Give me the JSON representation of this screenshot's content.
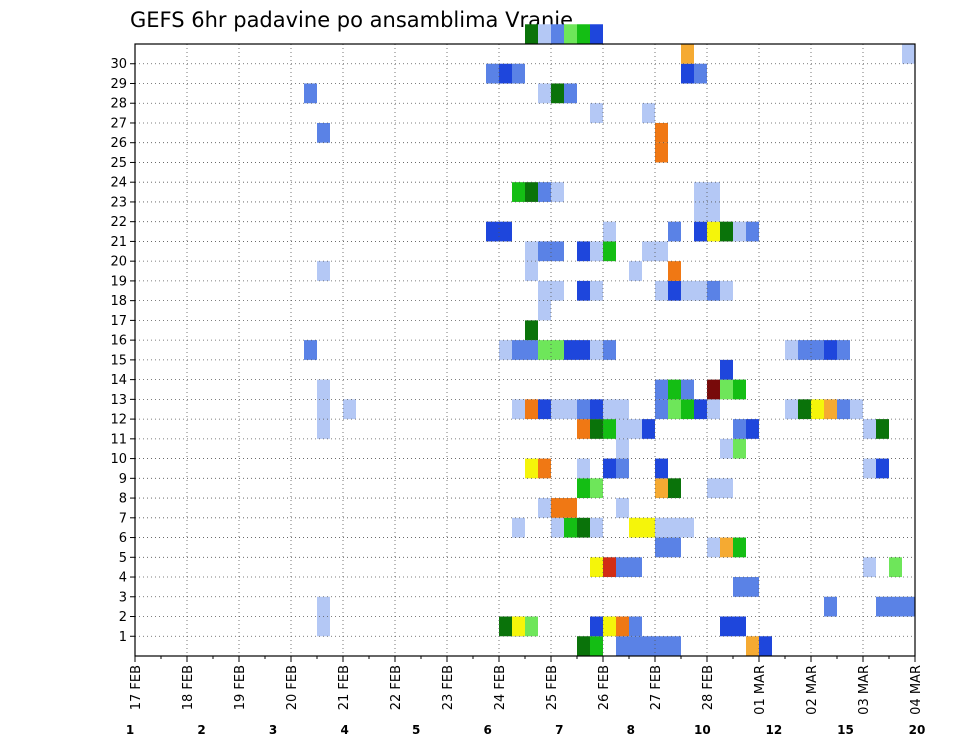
{
  "chart_data": {
    "type": "heatmap",
    "title": "GEFS 6hr padavine po ansamblima Vranje",
    "xlabel": "",
    "ylabel": "",
    "x_labels": [
      "17 FEB",
      "18 FEB",
      "19 FEB",
      "20 FEB",
      "21 FEB",
      "22 FEB",
      "23 FEB",
      "24 FEB",
      "25 FEB",
      "26 FEB",
      "27 FEB",
      "28 FEB",
      "01 MAR",
      "02 MAR",
      "03 MAR",
      "04 MAR"
    ],
    "y_labels": [
      "1",
      "2",
      "3",
      "4",
      "5",
      "6",
      "7",
      "8",
      "9",
      "10",
      "11",
      "12",
      "13",
      "14",
      "15",
      "16",
      "17",
      "18",
      "19",
      "20",
      "21",
      "22",
      "23",
      "24",
      "25",
      "26",
      "27",
      "28",
      "29",
      "30"
    ],
    "time_steps": 60,
    "members": 31,
    "grid": true,
    "colorbar": {
      "placement": "bottom",
      "labels": [
        "1",
        "2",
        "3",
        "4",
        "5",
        "6",
        "7",
        "8",
        "10",
        "12",
        "15",
        "20"
      ],
      "colors": [
        "#b4c8f5",
        "#5a82e6",
        "#1e46dc",
        "#6ee65a",
        "#14be14",
        "#0a730a",
        "#f5f50a",
        "#f5aa32",
        "#f07814",
        "#d22d14",
        "#780a0a"
      ]
    },
    "cells": [
      [
        34,
        0,
        5
      ],
      [
        35,
        0,
        4
      ],
      [
        37,
        0,
        1
      ],
      [
        38,
        0,
        1
      ],
      [
        39,
        0,
        1
      ],
      [
        40,
        0,
        1
      ],
      [
        41,
        0,
        1
      ],
      [
        47,
        0,
        7
      ],
      [
        48,
        0,
        2
      ],
      [
        28,
        1,
        5
      ],
      [
        29,
        1,
        2
      ],
      [
        35,
        1,
        2
      ],
      [
        36,
        1,
        6
      ],
      [
        37,
        1,
        8
      ],
      [
        38,
        1,
        1
      ],
      [
        14,
        1,
        0
      ],
      [
        29,
        1,
        6
      ],
      [
        30,
        1,
        3
      ],
      [
        45,
        1,
        2
      ],
      [
        46,
        1,
        2
      ],
      [
        14,
        2,
        0
      ],
      [
        53,
        2,
        1
      ],
      [
        57,
        2,
        1
      ],
      [
        58,
        2,
        1
      ],
      [
        59,
        2,
        1
      ],
      [
        46,
        3,
        1
      ],
      [
        47,
        3,
        1
      ],
      [
        35,
        4,
        6
      ],
      [
        36,
        4,
        9
      ],
      [
        37,
        4,
        1
      ],
      [
        38,
        4,
        1
      ],
      [
        56,
        4,
        0
      ],
      [
        58,
        4,
        3
      ],
      [
        40,
        5,
        1
      ],
      [
        41,
        5,
        1
      ],
      [
        44,
        5,
        0
      ],
      [
        45,
        5,
        7
      ],
      [
        46,
        5,
        4
      ],
      [
        29,
        6,
        0
      ],
      [
        32,
        6,
        0
      ],
      [
        33,
        6,
        4
      ],
      [
        34,
        6,
        5
      ],
      [
        35,
        6,
        0
      ],
      [
        38,
        6,
        6
      ],
      [
        39,
        6,
        6
      ],
      [
        40,
        6,
        0
      ],
      [
        41,
        6,
        0
      ],
      [
        42,
        6,
        0
      ],
      [
        31,
        7,
        0
      ],
      [
        32,
        7,
        8
      ],
      [
        33,
        7,
        8
      ],
      [
        37,
        7,
        0
      ],
      [
        34,
        8,
        4
      ],
      [
        35,
        8,
        3
      ],
      [
        40,
        8,
        7
      ],
      [
        41,
        8,
        5
      ],
      [
        44,
        8,
        0
      ],
      [
        45,
        8,
        0
      ],
      [
        30,
        9,
        6
      ],
      [
        31,
        9,
        8
      ],
      [
        34,
        9,
        0
      ],
      [
        36,
        9,
        2
      ],
      [
        37,
        9,
        1
      ],
      [
        40,
        9,
        2
      ],
      [
        56,
        9,
        0
      ],
      [
        57,
        9,
        2
      ],
      [
        60,
        9,
        1
      ],
      [
        37,
        10,
        0
      ],
      [
        45,
        10,
        0
      ],
      [
        46,
        10,
        3
      ],
      [
        14,
        11,
        0
      ],
      [
        34,
        11,
        8
      ],
      [
        35,
        11,
        5
      ],
      [
        36,
        11,
        4
      ],
      [
        37,
        11,
        0
      ],
      [
        38,
        11,
        0
      ],
      [
        39,
        11,
        2
      ],
      [
        46,
        11,
        1
      ],
      [
        47,
        11,
        2
      ],
      [
        56,
        11,
        0
      ],
      [
        57,
        11,
        5
      ],
      [
        14,
        12,
        0
      ],
      [
        16,
        12,
        0
      ],
      [
        29,
        12,
        0
      ],
      [
        30,
        12,
        8
      ],
      [
        31,
        12,
        2
      ],
      [
        32,
        12,
        0
      ],
      [
        33,
        12,
        0
      ],
      [
        34,
        12,
        1
      ],
      [
        35,
        12,
        2
      ],
      [
        36,
        12,
        0
      ],
      [
        37,
        12,
        0
      ],
      [
        40,
        12,
        1
      ],
      [
        41,
        12,
        3
      ],
      [
        42,
        12,
        4
      ],
      [
        43,
        12,
        2
      ],
      [
        44,
        12,
        0
      ],
      [
        50,
        12,
        0
      ],
      [
        51,
        12,
        5
      ],
      [
        52,
        12,
        6
      ],
      [
        53,
        12,
        7
      ],
      [
        54,
        12,
        1
      ],
      [
        55,
        12,
        0
      ],
      [
        14,
        13,
        0
      ],
      [
        40,
        13,
        1
      ],
      [
        41,
        13,
        4
      ],
      [
        42,
        13,
        1
      ],
      [
        44,
        13,
        10
      ],
      [
        45,
        13,
        3
      ],
      [
        46,
        13,
        4
      ],
      [
        45,
        14,
        2
      ],
      [
        28,
        15,
        0
      ],
      [
        29,
        15,
        1
      ],
      [
        30,
        15,
        1
      ],
      [
        31,
        15,
        3
      ],
      [
        32,
        15,
        3
      ],
      [
        33,
        15,
        2
      ],
      [
        34,
        15,
        2
      ],
      [
        35,
        15,
        0
      ],
      [
        36,
        15,
        1
      ],
      [
        50,
        15,
        0
      ],
      [
        51,
        15,
        1
      ],
      [
        52,
        15,
        1
      ],
      [
        53,
        15,
        2
      ],
      [
        54,
        15,
        1
      ],
      [
        13,
        15,
        1
      ],
      [
        30,
        16,
        5
      ],
      [
        31,
        17,
        0
      ],
      [
        31,
        18,
        0
      ],
      [
        32,
        18,
        0
      ],
      [
        34,
        18,
        2
      ],
      [
        35,
        18,
        0
      ],
      [
        40,
        18,
        0
      ],
      [
        41,
        18,
        2
      ],
      [
        42,
        18,
        0
      ],
      [
        43,
        18,
        0
      ],
      [
        44,
        18,
        1
      ],
      [
        45,
        18,
        0
      ],
      [
        41,
        19,
        8
      ],
      [
        14,
        19,
        0
      ],
      [
        30,
        19,
        0
      ],
      [
        38,
        19,
        0
      ],
      [
        30,
        20,
        0
      ],
      [
        31,
        20,
        1
      ],
      [
        32,
        20,
        1
      ],
      [
        34,
        20,
        2
      ],
      [
        35,
        20,
        0
      ],
      [
        36,
        20,
        4
      ],
      [
        39,
        20,
        0
      ],
      [
        40,
        20,
        0
      ],
      [
        27,
        21,
        2
      ],
      [
        28,
        21,
        2
      ],
      [
        36,
        21,
        0
      ],
      [
        41,
        21,
        1
      ],
      [
        43,
        21,
        2
      ],
      [
        44,
        21,
        6
      ],
      [
        45,
        21,
        5
      ],
      [
        46,
        21,
        0
      ],
      [
        47,
        21,
        1
      ],
      [
        43,
        22,
        0
      ],
      [
        44,
        22,
        0
      ],
      [
        29,
        23,
        4
      ],
      [
        30,
        23,
        5
      ],
      [
        31,
        23,
        1
      ],
      [
        32,
        23,
        0
      ],
      [
        43,
        23,
        0
      ],
      [
        44,
        23,
        0
      ],
      [
        40,
        25,
        8
      ],
      [
        14,
        26,
        1
      ],
      [
        40,
        26,
        8
      ],
      [
        35,
        27,
        0
      ],
      [
        39,
        27,
        0
      ],
      [
        13,
        28,
        1
      ],
      [
        31,
        28,
        0
      ],
      [
        32,
        28,
        5
      ],
      [
        33,
        28,
        1
      ],
      [
        27,
        29,
        1
      ],
      [
        28,
        29,
        2
      ],
      [
        29,
        29,
        1
      ],
      [
        42,
        29,
        2
      ],
      [
        43,
        29,
        1
      ],
      [
        42,
        30,
        7
      ],
      [
        59,
        30,
        0
      ],
      [
        60,
        30,
        7
      ],
      [
        30,
        31,
        5
      ],
      [
        31,
        31,
        0
      ],
      [
        32,
        31,
        1
      ],
      [
        33,
        31,
        3
      ],
      [
        34,
        31,
        4
      ],
      [
        35,
        31,
        2
      ]
    ]
  }
}
